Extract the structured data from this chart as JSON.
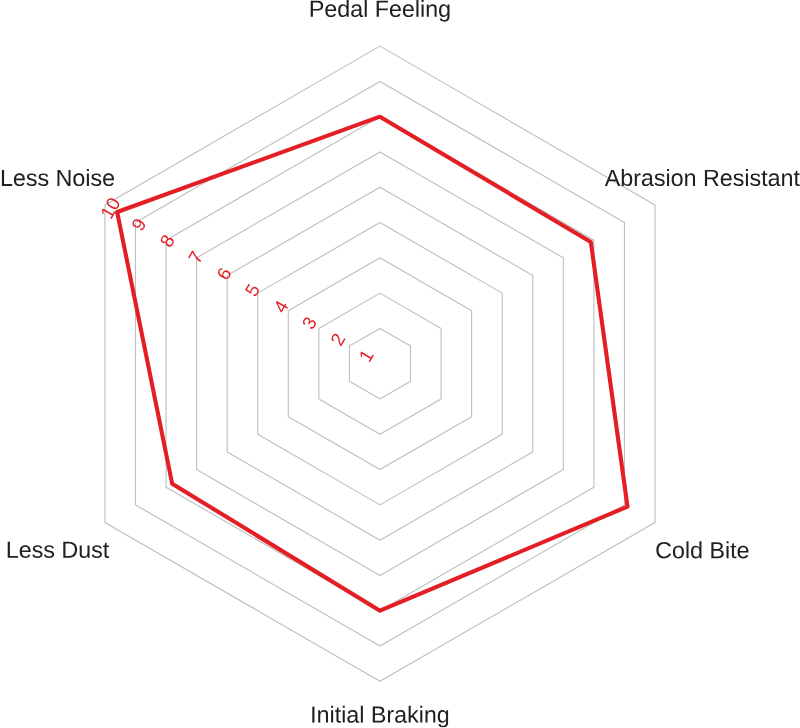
{
  "chart_data": {
    "type": "radar",
    "categories": [
      "Pedal Feeling",
      "Abrasion Resistant",
      "Cold Bite",
      "Initial Braking",
      "Less Dust",
      "Less Noise"
    ],
    "series": [
      {
        "color": "#e31e24",
        "values": [
          8.0,
          7.9,
          9.1,
          8.0,
          7.8,
          9.6
        ]
      }
    ],
    "ylim": [
      1,
      10
    ],
    "yticks": [
      1,
      2,
      3,
      4,
      5,
      6,
      7,
      8,
      9,
      10
    ]
  }
}
